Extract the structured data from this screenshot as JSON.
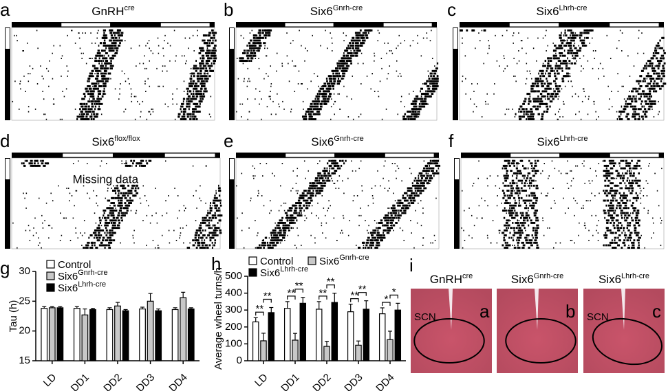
{
  "panels": [
    {
      "label": "a",
      "title": "GnRH",
      "title_sup": "cre"
    },
    {
      "label": "b",
      "title": "Six6",
      "title_sup": "Gnrh-cre"
    },
    {
      "label": "c",
      "title": "Six6",
      "title_sup": "Lhrh-cre"
    },
    {
      "label": "d",
      "title": "Six6",
      "title_sup": "flox/flox",
      "annotation": "Missing data"
    },
    {
      "label": "e",
      "title": "Six6",
      "title_sup": "Gnrh-cre"
    },
    {
      "label": "f",
      "title": "Six6",
      "title_sup": "Lhrh-cre"
    }
  ],
  "histology": {
    "label": "i",
    "images": [
      {
        "title": "GnRH",
        "title_sup": "cre",
        "label": "a",
        "region": "SCN"
      },
      {
        "title": "Six6",
        "title_sup": "Gnrh-cre",
        "label": "b"
      },
      {
        "title": "Six6",
        "title_sup": "Lhrh-cre",
        "label": "c",
        "region": "SCN"
      }
    ]
  },
  "chart_data": [
    {
      "type": "bar",
      "panel_label": "g",
      "y_label": "Tau (h)",
      "categories": [
        "LD",
        "DD1",
        "DD2",
        "DD3",
        "DD4"
      ],
      "ylim": [
        15,
        30
      ],
      "yticks": [
        15,
        20,
        25,
        30
      ],
      "series": [
        {
          "name": "Control",
          "color": "#ffffff",
          "values": [
            23.8,
            23.8,
            23.6,
            23.7,
            23.6
          ],
          "errors": [
            0.3,
            0.3,
            0.3,
            0.3,
            0.3
          ]
        },
        {
          "name": "Six6",
          "name_sup": "Gnrh-cre",
          "color": "#c8c8c8",
          "values": [
            23.9,
            22.7,
            24.2,
            25.0,
            25.6
          ],
          "errors": [
            0.2,
            1.0,
            0.6,
            1.3,
            0.9
          ]
        },
        {
          "name": "Six6",
          "name_sup": "Lhrh-cre",
          "color": "#000000",
          "values": [
            23.9,
            23.6,
            23.4,
            23.4,
            23.7
          ],
          "errors": [
            0.2,
            0.2,
            0.2,
            0.3,
            0.2
          ]
        }
      ]
    },
    {
      "type": "bar",
      "panel_label": "h",
      "y_label": "Average wheel turns/h",
      "categories": [
        "LD",
        "DD1",
        "DD2",
        "DD3",
        "DD4"
      ],
      "ylim": [
        0,
        500
      ],
      "yticks": [
        0,
        100,
        200,
        300,
        400,
        500
      ],
      "series": [
        {
          "name": "Control",
          "color": "#ffffff",
          "values": [
            230,
            310,
            305,
            290,
            278
          ],
          "errors": [
            25,
            40,
            45,
            45,
            35
          ]
        },
        {
          "name": "Six6",
          "name_sup": "Gnrh-cre",
          "color": "#c8c8c8",
          "values": [
            118,
            122,
            85,
            92,
            125
          ],
          "errors": [
            45,
            40,
            30,
            25,
            50
          ]
        },
        {
          "name": "Six6",
          "name_sup": "Lhrh-cre",
          "color": "#000000",
          "values": [
            285,
            340,
            345,
            305,
            300
          ],
          "errors": [
            30,
            35,
            55,
            50,
            40
          ]
        }
      ],
      "significance": [
        [
          "**",
          "**"
        ],
        [
          "**",
          "**"
        ],
        [
          "**",
          "**"
        ],
        [
          "**",
          "**"
        ],
        [
          "*",
          "*"
        ]
      ]
    }
  ]
}
